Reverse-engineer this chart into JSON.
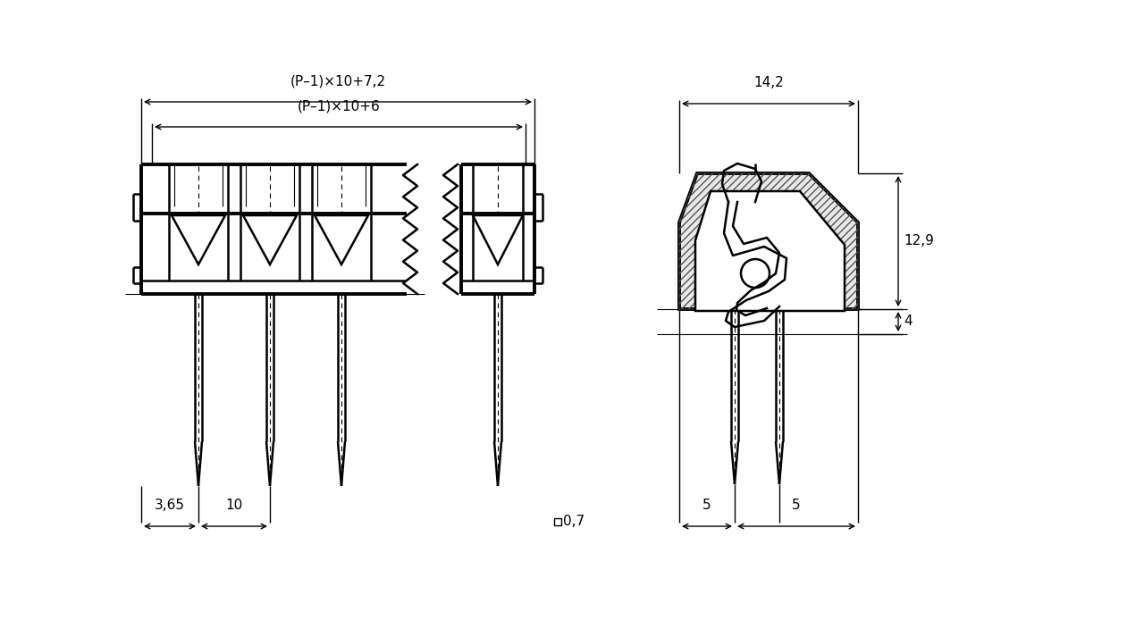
{
  "bg_color": "#ffffff",
  "line_color": "#000000",
  "dim_color": "#000000",
  "font_size": 11,
  "font_size_small": 9,
  "dims": {
    "p1x10_72": "(P–1)×10+7,2",
    "p1x10_6": "(P–1)×10+6",
    "d3_65": "3,65",
    "d10": "10",
    "d0_7": "0,7",
    "d14_2": "14,2",
    "d12_9": "12,9",
    "d4": "4",
    "d5a": "5",
    "d5b": "5"
  }
}
